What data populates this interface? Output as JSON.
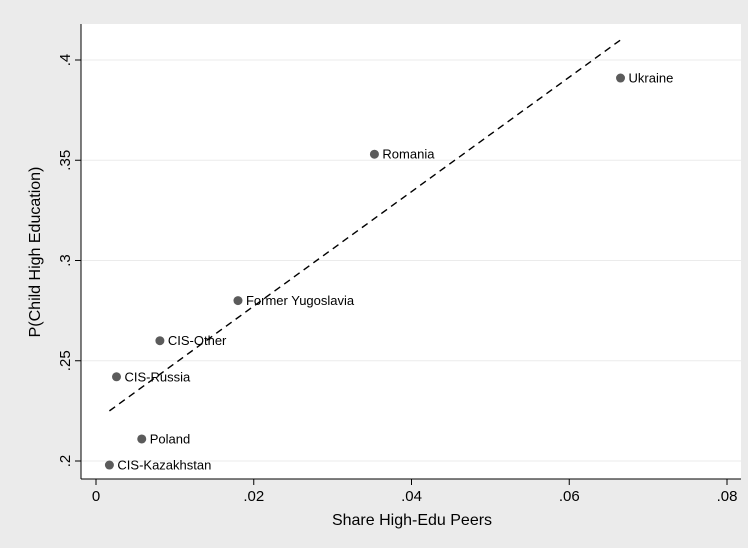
{
  "chart_data": {
    "type": "scatter",
    "xlabel": "Share High-Edu Peers",
    "ylabel": "P(Child High Education)",
    "xlim": [
      0,
      0.08
    ],
    "ylim": [
      0.195,
      0.415
    ],
    "x_ticks": [
      {
        "value": 0,
        "label": "0"
      },
      {
        "value": 0.02,
        "label": ".02"
      },
      {
        "value": 0.04,
        "label": ".04"
      },
      {
        "value": 0.06,
        "label": ".06"
      },
      {
        "value": 0.08,
        "label": ".08"
      }
    ],
    "y_ticks": [
      {
        "value": 0.2,
        "label": ".2"
      },
      {
        "value": 0.25,
        "label": ".25"
      },
      {
        "value": 0.3,
        "label": ".3"
      },
      {
        "value": 0.35,
        "label": ".35"
      },
      {
        "value": 0.4,
        "label": ".4"
      }
    ],
    "grid": "horizontal",
    "points": [
      {
        "label": "Ukraine",
        "x": 0.0665,
        "y": 0.391
      },
      {
        "label": "Romania",
        "x": 0.0353,
        "y": 0.353
      },
      {
        "label": "Former Yugoslavia",
        "x": 0.018,
        "y": 0.28
      },
      {
        "label": "CIS-Other",
        "x": 0.0081,
        "y": 0.26
      },
      {
        "label": "CIS-Russia",
        "x": 0.0026,
        "y": 0.242
      },
      {
        "label": "Poland",
        "x": 0.0058,
        "y": 0.211
      },
      {
        "label": "CIS-Kazakhstan",
        "x": 0.0017,
        "y": 0.198
      }
    ],
    "fit_line": {
      "style": "dashed",
      "x": [
        0.0017,
        0.0665
      ],
      "y": [
        0.225,
        0.41
      ]
    },
    "colors": {
      "background": "#ebebeb",
      "plot_area": "#ffffff",
      "gridline": "#ebebeb",
      "marker": "#5b5b5b",
      "fit_line": "#000000"
    }
  }
}
